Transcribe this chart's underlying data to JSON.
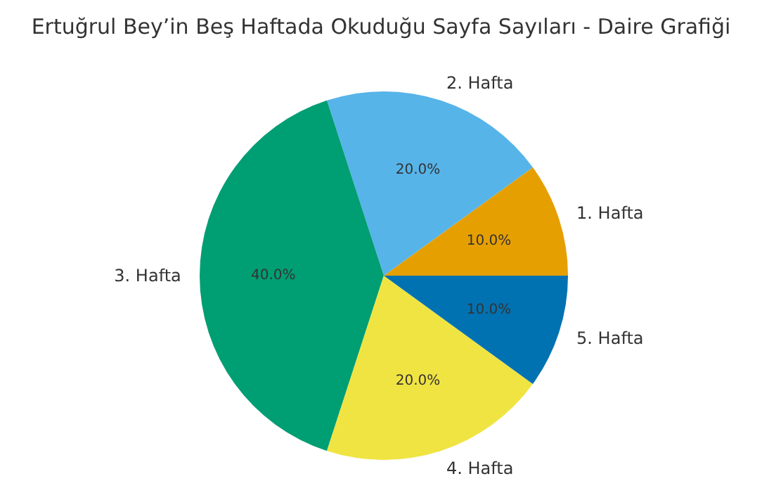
{
  "chart_data": {
    "type": "pie",
    "title": "Ertuğrul Bey’in Beş Haftada Okuduğu Sayfa Sayıları - Daire Grafiği",
    "categories": [
      "1. Hafta",
      "2. Hafta",
      "3. Hafta",
      "4. Hafta",
      "5. Hafta"
    ],
    "values": [
      10,
      20,
      40,
      20,
      10
    ],
    "colors": [
      "#e69f00",
      "#56b4e9",
      "#009e73",
      "#f0e442",
      "#0072b2"
    ],
    "value_labels": [
      "10.0%",
      "20.0%",
      "40.0%",
      "20.0%",
      "10.0%"
    ]
  }
}
